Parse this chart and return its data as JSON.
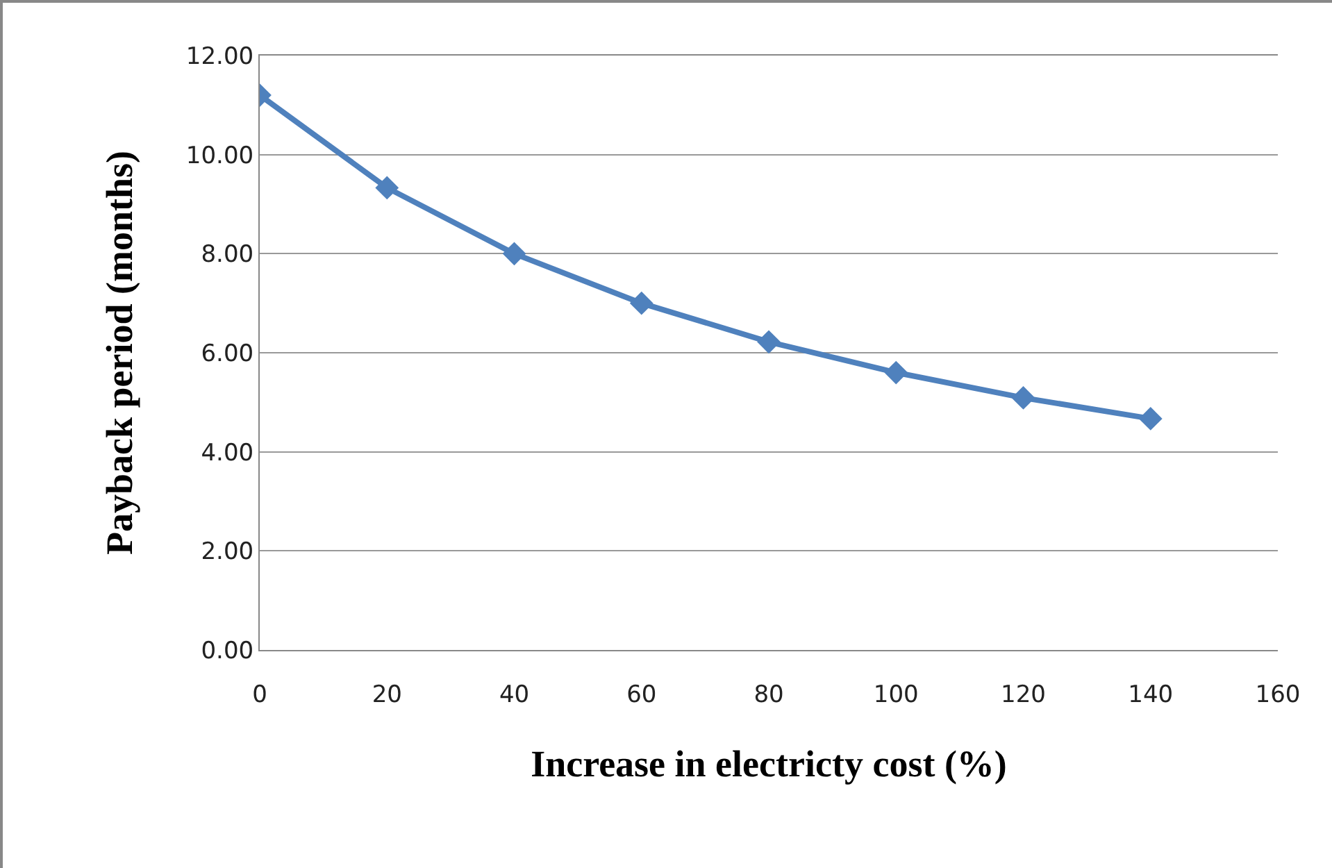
{
  "chart_data": {
    "type": "line",
    "xlabel": "Increase in electricty cost (%)",
    "ylabel": "Payback period (months)",
    "x": [
      0,
      20,
      40,
      60,
      80,
      100,
      120,
      140
    ],
    "series": [
      {
        "color": "#4f81bd",
        "values": [
          11.2,
          9.33,
          8.0,
          7.0,
          6.22,
          5.6,
          5.09,
          4.67
        ]
      }
    ],
    "xlim": [
      0,
      160
    ],
    "xticks": [
      0,
      20,
      40,
      60,
      80,
      100,
      120,
      140,
      160
    ],
    "ylim": [
      0,
      12
    ],
    "yticks": [
      {
        "value": 0,
        "label": "0.00"
      },
      {
        "value": 2,
        "label": "2.00"
      },
      {
        "value": 4,
        "label": "4.00"
      },
      {
        "value": 6,
        "label": "6.00"
      },
      {
        "value": 8,
        "label": "8.00"
      },
      {
        "value": 10,
        "label": "10.00"
      },
      {
        "value": 12,
        "label": "12.00"
      }
    ],
    "grid": "y",
    "marker": "diamond",
    "line_style": "solid"
  }
}
